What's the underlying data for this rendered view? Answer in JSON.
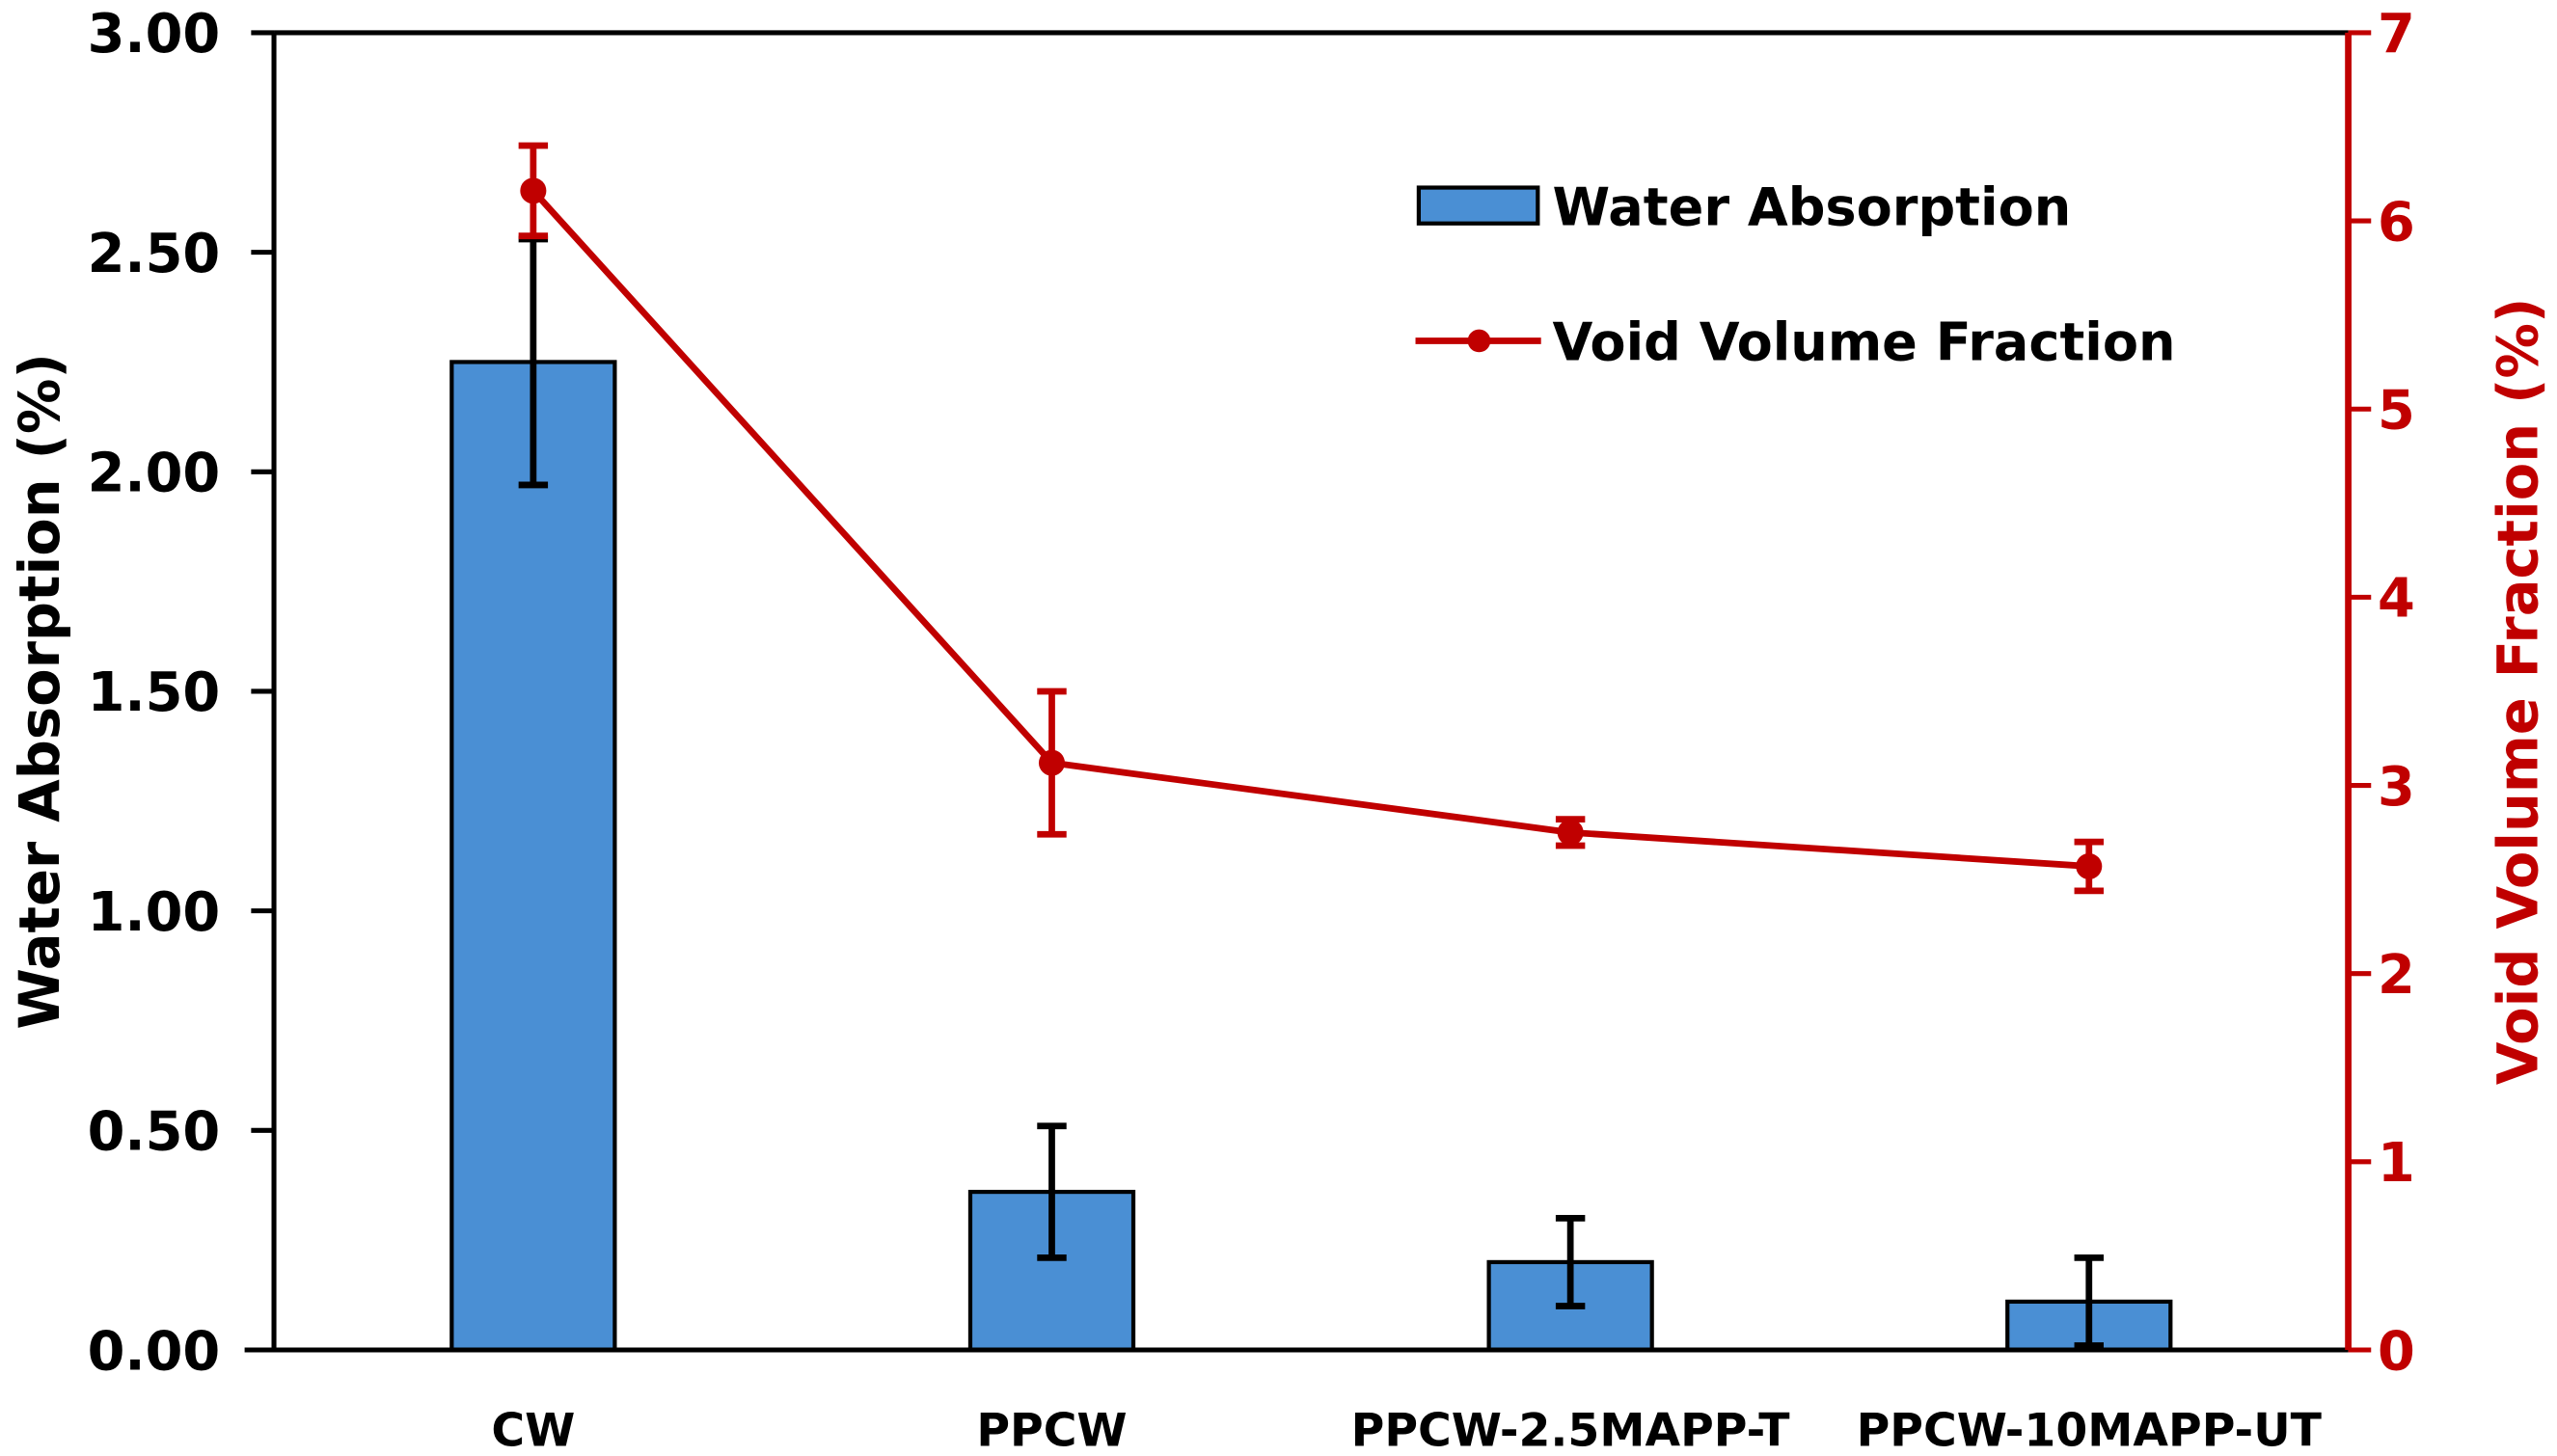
{
  "chart_data": {
    "type": "bar+line",
    "categories": [
      "CW",
      "PPCW",
      "PPCW-2.5MAPP-T",
      "PPCW-10MAPP-UT"
    ],
    "series": [
      {
        "name": "Water Absorption",
        "type": "bar",
        "axis": "left",
        "values": [
          2.25,
          0.36,
          0.2,
          0.11
        ],
        "errors": [
          0.28,
          0.15,
          0.1,
          0.1
        ],
        "color": "#4A8FD4"
      },
      {
        "name": "Void Volume Fraction",
        "type": "line",
        "axis": "right",
        "values": [
          6.16,
          3.12,
          2.75,
          2.57
        ],
        "errors": [
          0.24,
          0.38,
          0.07,
          0.13
        ],
        "color": "#C00000"
      }
    ],
    "ylabel": "Water Absorption (%)",
    "y2label": "Void Volume Fraction (%)",
    "ylim": [
      0,
      3
    ],
    "y2lim": [
      0,
      7
    ],
    "yticks": [
      "0.00",
      "0.50",
      "1.00",
      "1.50",
      "2.00",
      "2.50",
      "3.00"
    ],
    "y2ticks": [
      "0",
      "1",
      "2",
      "3",
      "4",
      "5",
      "6",
      "7"
    ],
    "legend_position": "top-right",
    "grid": false
  }
}
